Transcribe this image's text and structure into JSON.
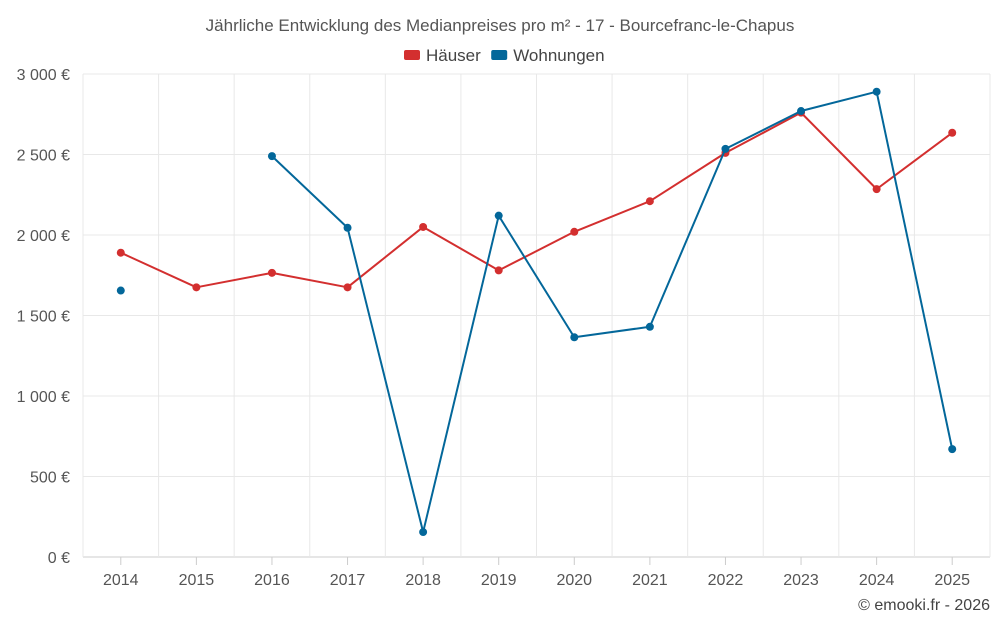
{
  "chart_data": {
    "type": "line",
    "title": "Jährliche Entwicklung des Medianpreises pro m² - 17 - Bourcefranc-le-Chapus",
    "x": [
      "2014",
      "2015",
      "2016",
      "2017",
      "2018",
      "2019",
      "2020",
      "2021",
      "2022",
      "2023",
      "2024",
      "2025"
    ],
    "ylim": [
      0,
      3000
    ],
    "yticks": [
      0,
      500,
      1000,
      1500,
      2000,
      2500,
      3000
    ],
    "ytick_labels": [
      "0 €",
      "500 €",
      "1 000 €",
      "1 500 €",
      "2 000 €",
      "2 500 €",
      "3 000 €"
    ],
    "grid": true,
    "legend_position": "top-center",
    "series": [
      {
        "name": "Häuser",
        "color": "#d32f2f",
        "values": [
          1890,
          1675,
          1765,
          1675,
          2050,
          1780,
          2020,
          2210,
          2510,
          2760,
          2285,
          2635
        ]
      },
      {
        "name": "Wohnungen",
        "color": "#03679a",
        "values": [
          1655,
          null,
          2490,
          2045,
          155,
          2120,
          1365,
          1430,
          2535,
          2770,
          2890,
          670
        ]
      }
    ],
    "credit": "© emooki.fr - 2026"
  }
}
